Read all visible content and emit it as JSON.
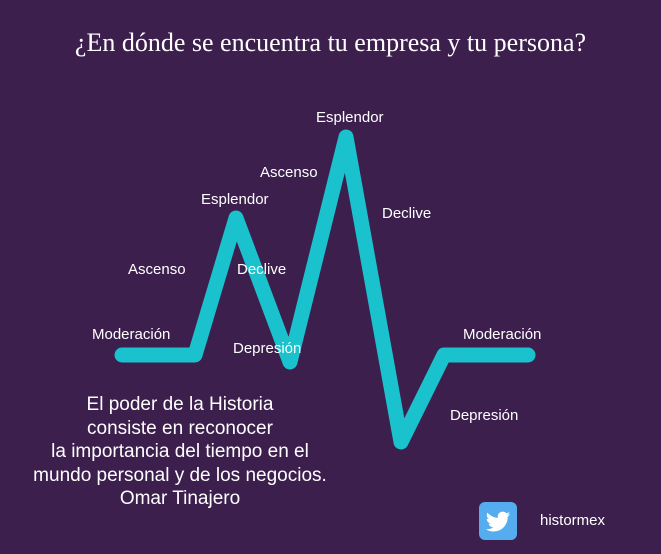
{
  "title": "¿En dónde se encuentra tu empresa y tu persona?",
  "wave": {
    "color": "#19c2cc",
    "labels": {
      "moderacion_left": "Moderación",
      "ascenso_1": "Ascenso",
      "esplendor_1": "Esplendor",
      "declive_1": "Declive",
      "depresion_1": "Depresión",
      "ascenso_2": "Ascenso",
      "esplendor_2": "Esplendor",
      "declive_2": "Declive",
      "depresion_2": "Depresión",
      "moderacion_right": "Moderación"
    }
  },
  "quote": {
    "lines": [
      "El poder de la Historia",
      "consiste en reconocer",
      "la importancia del tiempo en el",
      "mundo personal y de los negocios.",
      "Omar Tinajero"
    ]
  },
  "social": {
    "icon": "twitter-icon",
    "icon_color": "#55acee",
    "handle": "histormex"
  }
}
